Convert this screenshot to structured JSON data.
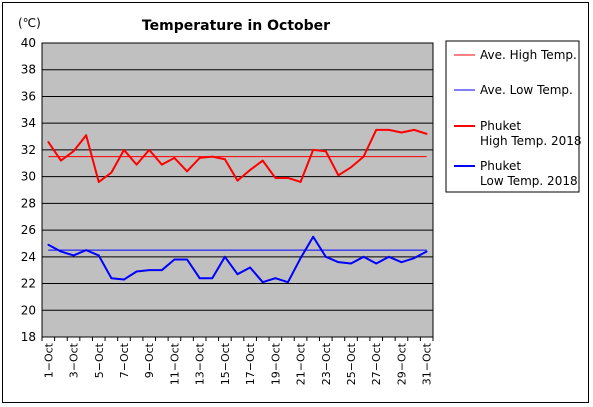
{
  "chart_data": {
    "type": "line",
    "title": "Temperature in October",
    "unit_label": "(℃)",
    "ylim": [
      18,
      40
    ],
    "y_ticks": [
      40,
      38,
      36,
      34,
      32,
      30,
      28,
      26,
      24,
      22,
      20,
      18
    ],
    "categories": [
      "1-Oct",
      "2-Oct",
      "3-Oct",
      "4-Oct",
      "5-Oct",
      "6-Oct",
      "7-Oct",
      "8-Oct",
      "9-Oct",
      "10-Oct",
      "11-Oct",
      "12-Oct",
      "13-Oct",
      "14-Oct",
      "15-Oct",
      "16-Oct",
      "17-Oct",
      "18-Oct",
      "19-Oct",
      "20-Oct",
      "21-Oct",
      "22-Oct",
      "23-Oct",
      "24-Oct",
      "25-Oct",
      "26-Oct",
      "27-Oct",
      "28-Oct",
      "29-Oct",
      "30-Oct",
      "31-Oct"
    ],
    "x_tick_labels": [
      "1−Oct",
      "3−Oct",
      "5−Oct",
      "7−Oct",
      "9−Oct",
      "11−Oct",
      "13−Oct",
      "15−Oct",
      "17−Oct",
      "19−Oct",
      "21−Oct",
      "23−Oct",
      "25−Oct",
      "27−Oct",
      "29−Oct",
      "31−Oct"
    ],
    "grid": true,
    "legend_position": "right",
    "series": [
      {
        "name": "Ave. High Temp.",
        "color": "#ff0000",
        "width": 1,
        "constant": 31.5
      },
      {
        "name": "Ave. Low Temp.",
        "color": "#0000ff",
        "width": 1,
        "constant": 24.5
      },
      {
        "name": "Phuket\nHigh Temp. 2018",
        "color": "#ff0000",
        "width": 2,
        "values": [
          32.6,
          31.2,
          31.9,
          33.1,
          29.6,
          30.3,
          32.0,
          30.9,
          32.0,
          30.9,
          31.4,
          30.4,
          31.4,
          31.5,
          31.3,
          29.7,
          30.5,
          31.2,
          29.9,
          29.9,
          29.6,
          32.0,
          31.9,
          30.1,
          30.7,
          31.5,
          33.5,
          33.5,
          33.3,
          33.5,
          33.2
        ]
      },
      {
        "name": "Phuket\nLow Temp. 2018",
        "color": "#0000ff",
        "width": 2,
        "values": [
          24.9,
          24.4,
          24.1,
          24.5,
          24.1,
          22.4,
          22.3,
          22.9,
          23.0,
          23.0,
          23.8,
          23.8,
          22.4,
          22.4,
          24.0,
          22.7,
          23.2,
          22.1,
          22.4,
          22.1,
          23.9,
          25.5,
          24.0,
          23.6,
          23.5,
          24.0,
          23.5,
          24.0,
          23.6,
          23.9,
          24.4
        ]
      }
    ]
  }
}
